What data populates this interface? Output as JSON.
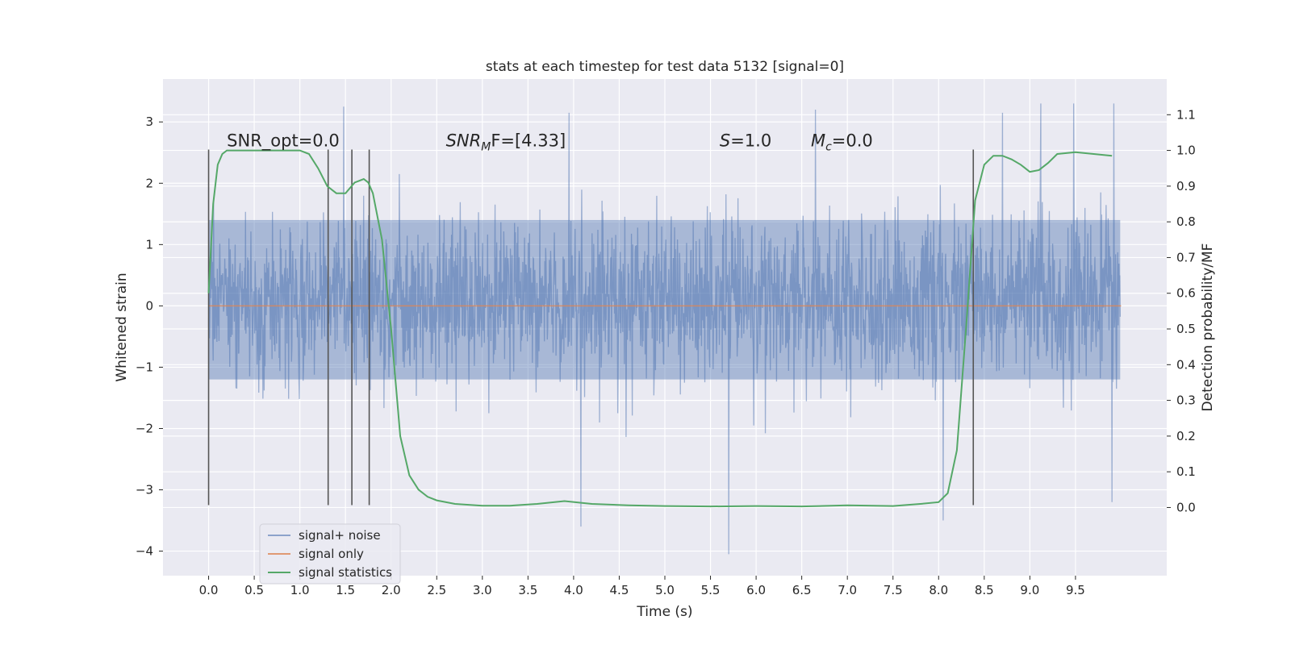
{
  "chart_data": {
    "type": "line",
    "title": "stats at each timestep for test data 5132 [signal=0]",
    "xlabel": "Time (s)",
    "ylabel": "Whitened strain",
    "y2label": "Detection probability/MF",
    "xlim": [
      -0.5,
      10.5
    ],
    "ylim": [
      -4.4,
      3.7
    ],
    "y2lim": [
      -0.1909,
      1.2
    ],
    "x_ticks": [
      0.0,
      0.5,
      1.0,
      1.5,
      2.0,
      2.5,
      3.0,
      3.5,
      4.0,
      4.5,
      5.0,
      5.5,
      6.0,
      6.5,
      7.0,
      7.5,
      8.0,
      8.5,
      9.0,
      9.5
    ],
    "x_tick_labels": [
      "0.0",
      "0.5",
      "1.0",
      "1.5",
      "2.0",
      "2.5",
      "3.0",
      "3.5",
      "4.0",
      "4.5",
      "5.0",
      "5.5",
      "6.0",
      "6.5",
      "7.0",
      "7.5",
      "8.0",
      "8.5",
      "9.0",
      "9.5"
    ],
    "y_ticks": [
      3,
      2,
      1,
      0,
      -1,
      -2,
      -3,
      -4
    ],
    "y_tick_labels": [
      "3",
      "2",
      "1",
      "0",
      "−1",
      "−2",
      "−3",
      "−4"
    ],
    "y2_ticks": [
      1.1,
      1.0,
      0.9,
      0.8,
      0.7,
      0.6,
      0.5,
      0.4,
      0.3,
      0.2,
      0.1,
      0.0
    ],
    "y2_tick_labels": [
      "1.1",
      "1.0",
      "0.9",
      "0.8",
      "0.7",
      "0.6",
      "0.5",
      "0.4",
      "0.3",
      "0.2",
      "0.1",
      "0.0"
    ],
    "grid": true,
    "legend_position": "lower-left",
    "series": [
      {
        "name": "signal+ noise",
        "color": "#4c72b0",
        "x_range": [
          0.0,
          9.99
        ],
        "amplitude_envelope": {
          "typical_range": [
            -1.2,
            1.4
          ],
          "peaks_positive": [
            {
              "x": 1.48,
              "y": 3.25
            },
            {
              "x": 3.95,
              "y": 3.15
            },
            {
              "x": 6.65,
              "y": 3.2
            },
            {
              "x": 8.7,
              "y": 3.15
            },
            {
              "x": 9.12,
              "y": 3.3
            },
            {
              "x": 9.48,
              "y": 3.3
            },
            {
              "x": 9.92,
              "y": 3.3
            }
          ],
          "peaks_negative": [
            {
              "x": 4.08,
              "y": -3.6
            },
            {
              "x": 5.7,
              "y": -4.05
            },
            {
              "x": 8.05,
              "y": -3.5
            },
            {
              "x": 9.9,
              "y": -3.2
            }
          ]
        }
      },
      {
        "name": "signal only",
        "color": "#dd8452",
        "x": [
          0.0,
          10.0
        ],
        "y": [
          0.0,
          0.0
        ]
      },
      {
        "name": "signal statistics",
        "color": "#55a868",
        "axis": "right",
        "x": [
          0.0,
          0.05,
          0.1,
          0.15,
          0.2,
          0.3,
          0.5,
          0.7,
          0.9,
          1.0,
          1.1,
          1.2,
          1.3,
          1.4,
          1.5,
          1.6,
          1.7,
          1.75,
          1.8,
          1.9,
          2.0,
          2.05,
          2.1,
          2.2,
          2.3,
          2.4,
          2.5,
          2.7,
          3.0,
          3.3,
          3.6,
          3.9,
          4.2,
          4.6,
          5.0,
          5.5,
          6.0,
          6.5,
          7.0,
          7.5,
          7.8,
          8.0,
          8.1,
          8.2,
          8.3,
          8.4,
          8.5,
          8.6,
          8.7,
          8.8,
          8.9,
          9.0,
          9.1,
          9.2,
          9.3,
          9.5,
          9.7,
          9.9
        ],
        "y": [
          0.6,
          0.85,
          0.96,
          0.99,
          1.0,
          1.0,
          1.0,
          1.0,
          1.0,
          1.0,
          0.99,
          0.95,
          0.9,
          0.88,
          0.88,
          0.91,
          0.92,
          0.91,
          0.88,
          0.75,
          0.5,
          0.35,
          0.2,
          0.09,
          0.05,
          0.03,
          0.02,
          0.01,
          0.005,
          0.005,
          0.01,
          0.018,
          0.01,
          0.006,
          0.004,
          0.003,
          0.004,
          0.003,
          0.006,
          0.004,
          0.01,
          0.015,
          0.04,
          0.16,
          0.5,
          0.86,
          0.96,
          0.985,
          0.985,
          0.975,
          0.96,
          0.94,
          0.945,
          0.965,
          0.99,
          0.995,
          0.99,
          0.985
        ]
      }
    ],
    "vertical_markers": {
      "color": "#555555",
      "x": [
        0.0,
        1.31,
        1.57,
        1.76,
        8.38
      ],
      "y_top": 2.55,
      "y_bottom": -3.25
    },
    "annotations": [
      {
        "text_parts": [
          {
            "t": "SNR_opt=0.0",
            "style": "normal"
          }
        ],
        "x": 0.2,
        "y": 2.6
      },
      {
        "text_parts": [
          {
            "t": "SNR",
            "style": "italic"
          },
          {
            "t": "M",
            "style": "italic-sub"
          },
          {
            "t": "F=[4.33]",
            "style": "normal"
          }
        ],
        "x": 2.6,
        "y": 2.6
      },
      {
        "text_parts": [
          {
            "t": "S",
            "style": "italic"
          },
          {
            "t": "=1.0",
            "style": "normal"
          }
        ],
        "x": 5.6,
        "y": 2.6
      },
      {
        "text_parts": [
          {
            "t": "M",
            "style": "italic"
          },
          {
            "t": "c",
            "style": "italic-sub"
          },
          {
            "t": "=0.0",
            "style": "normal"
          }
        ],
        "x": 6.6,
        "y": 2.6
      }
    ]
  }
}
